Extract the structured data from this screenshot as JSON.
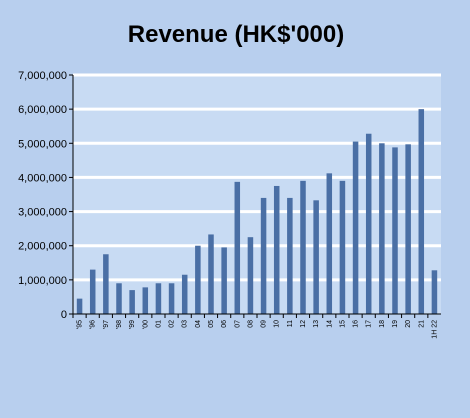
{
  "chart_data": {
    "type": "bar",
    "title": "Revenue (HK$'000)",
    "xlabel": "",
    "ylabel": "",
    "categories": [
      "'95",
      "'96",
      "'97",
      "'98",
      "'99",
      "'00",
      "01",
      "02",
      "03",
      "04",
      "05",
      "06",
      "07",
      "08",
      "09",
      "10",
      "11",
      "12",
      "13",
      "14",
      "15",
      "16",
      "17",
      "18",
      "19",
      "20",
      "21",
      "1H 22"
    ],
    "values": [
      450000,
      1300000,
      1750000,
      900000,
      700000,
      780000,
      900000,
      900000,
      1150000,
      2000000,
      2330000,
      1950000,
      3870000,
      2250000,
      3400000,
      3750000,
      3400000,
      3900000,
      3330000,
      4120000,
      3900000,
      5050000,
      5280000,
      5000000,
      4880000,
      4970000,
      6000000,
      1280000
    ],
    "ylim": [
      0,
      7000000
    ],
    "yticks": [
      "0",
      "1,000,000",
      "2,000,000",
      "3,000,000",
      "4,000,000",
      "5,000,000",
      "6,000,000",
      "7,000,000"
    ],
    "ytick_values": [
      0,
      1000000,
      2000000,
      3000000,
      4000000,
      5000000,
      6000000,
      7000000
    ],
    "grid": true,
    "legend": "none",
    "colors": {
      "background": "#b8cfee",
      "plot_area": "#c8dbf3",
      "bar": "#4a6fa5",
      "gridline": "#ffffff",
      "axis": "#000000"
    }
  }
}
